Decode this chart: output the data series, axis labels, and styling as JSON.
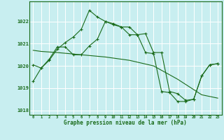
{
  "title": "Graphe pression niveau de la mer (hPa)",
  "background_color": "#c8eef0",
  "grid_color": "#ffffff",
  "line_color": "#1a6b1a",
  "xlim": [
    -0.5,
    23.5
  ],
  "ylim": [
    1017.8,
    1022.9
  ],
  "yticks": [
    1018,
    1019,
    1020,
    1021,
    1022
  ],
  "xticks": [
    0,
    1,
    2,
    3,
    4,
    5,
    6,
    7,
    8,
    9,
    10,
    11,
    12,
    13,
    14,
    15,
    16,
    17,
    18,
    19,
    20,
    21,
    22,
    23
  ],
  "line1_x": [
    0,
    1,
    2,
    3,
    4,
    5,
    6,
    7,
    8,
    9,
    10,
    11,
    12,
    13,
    14,
    15,
    16,
    17,
    18,
    19,
    20,
    21,
    22,
    23
  ],
  "line1_y": [
    1019.3,
    1019.9,
    1020.25,
    1020.75,
    1021.05,
    1021.3,
    1021.65,
    1022.5,
    1022.2,
    1022.0,
    1021.85,
    1021.75,
    1021.4,
    1021.4,
    1020.6,
    1020.55,
    1018.85,
    1018.8,
    1018.4,
    1018.4,
    1018.5,
    1019.55,
    1020.05,
    1020.1
  ],
  "line2_x": [
    0,
    1,
    2,
    3,
    4,
    5,
    6,
    7,
    8,
    9,
    10,
    11,
    12,
    13,
    14,
    15,
    16,
    17,
    18,
    19,
    20,
    21,
    22,
    23
  ],
  "line2_y": [
    1020.05,
    1019.9,
    1020.3,
    1020.85,
    1020.85,
    1020.5,
    1020.5,
    1020.9,
    1021.2,
    1022.0,
    1021.9,
    1021.75,
    1021.75,
    1021.4,
    1021.45,
    1020.6,
    1020.6,
    1018.85,
    1018.75,
    1018.45,
    1018.5,
    1019.55,
    1020.05,
    1020.1
  ],
  "line3_x": [
    0,
    1,
    3,
    6,
    9,
    12,
    15,
    18,
    21,
    23
  ],
  "line3_y": [
    1020.7,
    1020.65,
    1020.6,
    1020.5,
    1020.4,
    1020.25,
    1020.0,
    1019.4,
    1018.7,
    1018.55
  ],
  "figsize": [
    3.2,
    2.0
  ],
  "dpi": 100
}
